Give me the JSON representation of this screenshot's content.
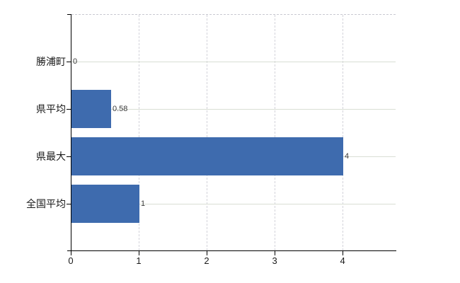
{
  "chart_data": {
    "type": "bar",
    "orientation": "horizontal",
    "title": "",
    "xlabel": "",
    "ylabel": "",
    "categories": [
      "勝浦町",
      "県平均",
      "県最大",
      "全国平均"
    ],
    "values": [
      0,
      0.58,
      4,
      1
    ],
    "value_labels": [
      "0",
      "0.58",
      "4",
      "1"
    ],
    "x_ticks": [
      0,
      1,
      2,
      3,
      4
    ],
    "x_tick_labels": [
      "0",
      "1",
      "2",
      "3",
      "4"
    ],
    "xlim": [
      0,
      4.78
    ],
    "grid": "on",
    "legend": "none",
    "colors": {
      "bar": "#3e6bae",
      "axis": "#000000",
      "grid_vertical": "#d3d3da",
      "grid_horizontal": "#d9ded4",
      "plot_top_border": "#c9c9d1",
      "category_text": "#1a1a1a",
      "tick_text": "#1a1a1a",
      "data_label_text": "#3a3a3a",
      "background": "#ffffff"
    }
  }
}
